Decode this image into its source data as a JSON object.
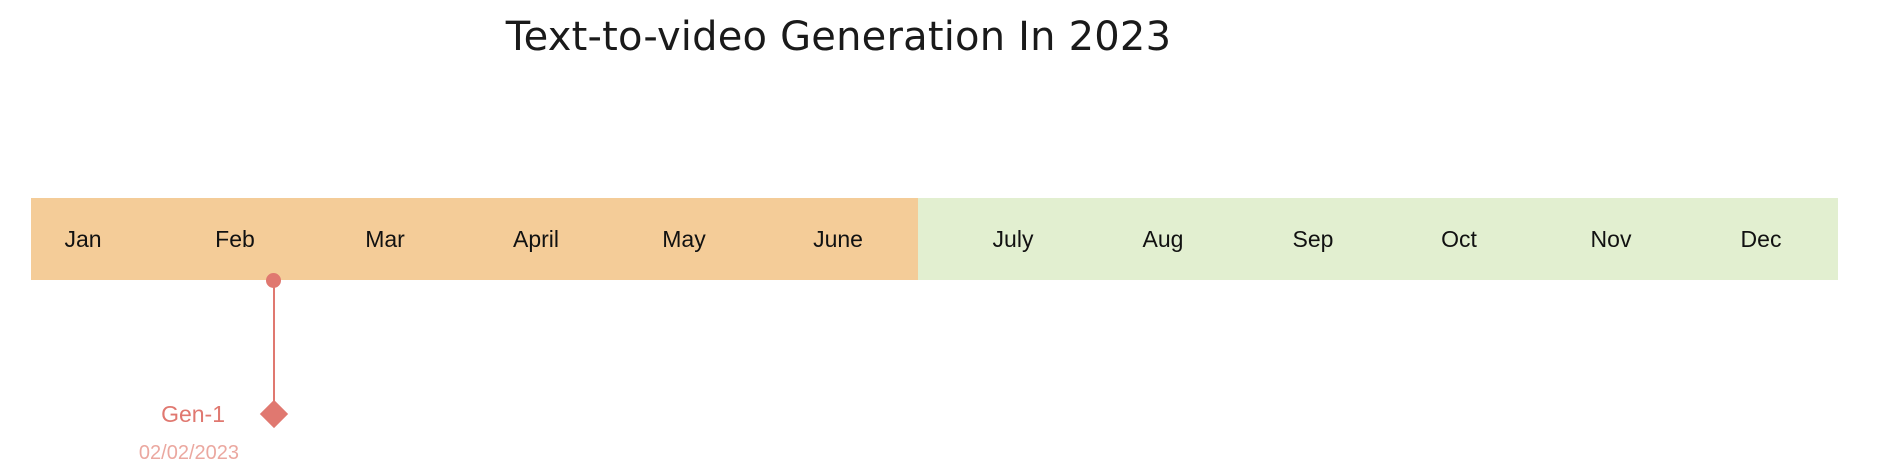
{
  "title": "Text-to-video Generation In 2023",
  "colors": {
    "first_half": "#f4cc98",
    "second_half": "#e2efd0",
    "milestone": "#e07870",
    "milestone_date": "#eba8a0"
  },
  "months": [
    "Jan",
    "Feb",
    "Mar",
    "April",
    "May",
    "June",
    "July",
    "Aug",
    "Sep",
    "Oct",
    "Nov",
    "Dec"
  ],
  "milestones": [
    {
      "label": "Gen-1",
      "date": "02/02/2023",
      "marker": "diamond-icon"
    }
  ]
}
